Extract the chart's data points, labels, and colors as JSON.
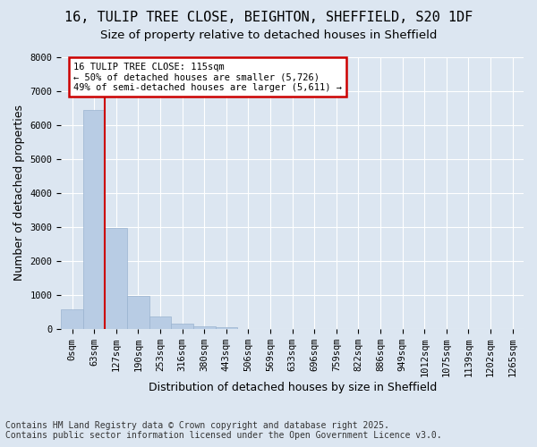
{
  "title_line1": "16, TULIP TREE CLOSE, BEIGHTON, SHEFFIELD, S20 1DF",
  "title_line2": "Size of property relative to detached houses in Sheffield",
  "xlabel": "Distribution of detached houses by size in Sheffield",
  "ylabel": "Number of detached properties",
  "bar_values": [
    570,
    6450,
    2980,
    970,
    370,
    160,
    80,
    50,
    0,
    0,
    0,
    0,
    0,
    0,
    0,
    0,
    0,
    0,
    0,
    0,
    0
  ],
  "bar_labels": [
    "0sqm",
    "63sqm",
    "127sqm",
    "190sqm",
    "253sqm",
    "316sqm",
    "380sqm",
    "443sqm",
    "506sqm",
    "569sqm",
    "633sqm",
    "696sqm",
    "759sqm",
    "822sqm",
    "886sqm",
    "949sqm",
    "1012sqm",
    "1075sqm",
    "1139sqm",
    "1202sqm",
    "1265sqm"
  ],
  "bar_color": "#b8cce4",
  "bar_edge_color": "#9ab3d0",
  "vline_color": "#cc0000",
  "annotation_box_text": "16 TULIP TREE CLOSE: 115sqm\n← 50% of detached houses are smaller (5,726)\n49% of semi-detached houses are larger (5,611) →",
  "annotation_box_color": "#cc0000",
  "annotation_box_bg": "#ffffff",
  "ylim": [
    0,
    8000
  ],
  "yticks": [
    0,
    1000,
    2000,
    3000,
    4000,
    5000,
    6000,
    7000,
    8000
  ],
  "footnote_line1": "Contains HM Land Registry data © Crown copyright and database right 2025.",
  "footnote_line2": "Contains public sector information licensed under the Open Government Licence v3.0.",
  "background_color": "#dce6f1",
  "plot_bg_color": "#dce6f1",
  "title_fontsize": 11,
  "subtitle_fontsize": 9.5,
  "axis_fontsize": 9,
  "tick_fontsize": 7.5,
  "footnote_fontsize": 7
}
